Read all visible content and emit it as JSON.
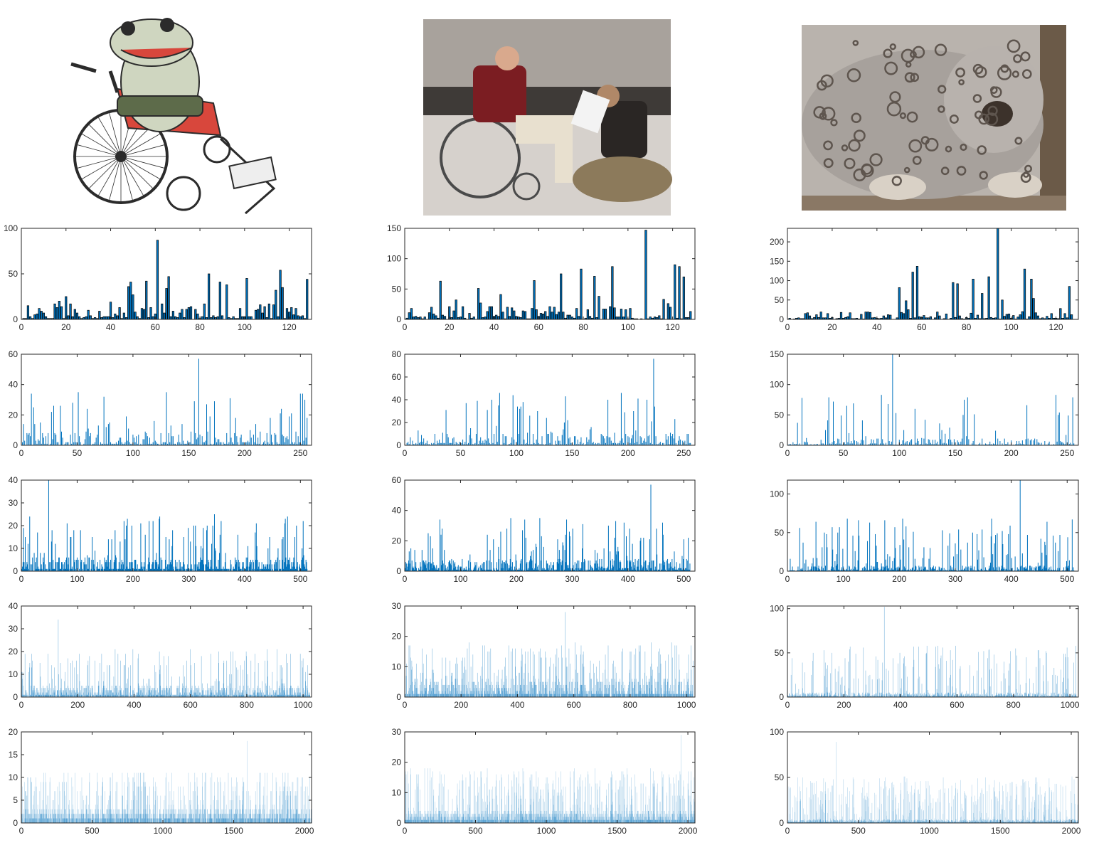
{
  "figure": {
    "images": [
      {
        "name": "frog-wheelchair-illustration",
        "palette": [
          "#cfd6c0",
          "#d8473c",
          "#2b2b2b"
        ]
      },
      {
        "name": "wheelchair-photo",
        "palette": [
          "#c9c0b6",
          "#7b1d22",
          "#2a2624"
        ]
      },
      {
        "name": "snow-leopard-photo",
        "palette": [
          "#b9b3ad",
          "#5e554e",
          "#3c322b"
        ]
      }
    ],
    "bar_color": "#0072BD"
  },
  "chart_data": [
    {
      "type": "bar",
      "row": 0,
      "col": 0,
      "bins": 128,
      "xlim": [
        0,
        130
      ],
      "ylim": [
        0,
        100
      ],
      "xticks": [
        0,
        20,
        40,
        60,
        80,
        100,
        120
      ],
      "yticks": [
        0,
        50,
        100
      ],
      "peak": 87,
      "peak_at": 60,
      "typical": 18,
      "seed": 11
    },
    {
      "type": "bar",
      "row": 0,
      "col": 1,
      "bins": 128,
      "xlim": [
        0,
        130
      ],
      "ylim": [
        0,
        150
      ],
      "xticks": [
        0,
        20,
        40,
        60,
        80,
        100,
        120
      ],
      "yticks": [
        0,
        50,
        100,
        150
      ],
      "peak": 147,
      "peak_at": 107,
      "typical": 22,
      "seed": 23
    },
    {
      "type": "bar",
      "row": 0,
      "col": 2,
      "bins": 128,
      "xlim": [
        0,
        130
      ],
      "ylim": [
        0,
        235
      ],
      "xticks": [
        0,
        20,
        40,
        60,
        80,
        100,
        120
      ],
      "yticks": [
        0,
        50,
        100,
        150,
        200
      ],
      "peak": 235,
      "peak_at": 93,
      "typical": 20,
      "seed": 37
    },
    {
      "type": "bar",
      "row": 1,
      "col": 0,
      "bins": 256,
      "xlim": [
        0,
        260
      ],
      "ylim": [
        0,
        60
      ],
      "xticks": [
        0,
        50,
        100,
        150,
        200,
        250
      ],
      "yticks": [
        0,
        20,
        40,
        60
      ],
      "peak": 57,
      "peak_at": 158,
      "typical": 9,
      "seed": 41
    },
    {
      "type": "bar",
      "row": 1,
      "col": 1,
      "bins": 256,
      "xlim": [
        0,
        260
      ],
      "ylim": [
        0,
        80
      ],
      "xticks": [
        0,
        50,
        100,
        150,
        200,
        250
      ],
      "yticks": [
        0,
        20,
        40,
        60,
        80
      ],
      "peak": 76,
      "peak_at": 222,
      "typical": 11,
      "seed": 53
    },
    {
      "type": "bar",
      "row": 1,
      "col": 2,
      "bins": 256,
      "xlim": [
        0,
        260
      ],
      "ylim": [
        0,
        150
      ],
      "xticks": [
        0,
        50,
        100,
        150,
        200,
        250
      ],
      "yticks": [
        0,
        50,
        100,
        150
      ],
      "peak": 150,
      "peak_at": 93,
      "typical": 12,
      "seed": 67
    },
    {
      "type": "bar",
      "row": 2,
      "col": 0,
      "bins": 512,
      "xlim": [
        0,
        520
      ],
      "ylim": [
        0,
        40
      ],
      "xticks": [
        0,
        100,
        200,
        300,
        400,
        500
      ],
      "yticks": [
        0,
        10,
        20,
        30,
        40
      ],
      "peak": 40,
      "peak_at": 48,
      "typical": 6,
      "seed": 71
    },
    {
      "type": "bar",
      "row": 2,
      "col": 1,
      "bins": 512,
      "xlim": [
        0,
        520
      ],
      "ylim": [
        0,
        60
      ],
      "xticks": [
        0,
        100,
        200,
        300,
        400,
        500
      ],
      "yticks": [
        0,
        20,
        40,
        60
      ],
      "peak": 57,
      "peak_at": 440,
      "typical": 8,
      "seed": 83
    },
    {
      "type": "bar",
      "row": 2,
      "col": 2,
      "bins": 512,
      "xlim": [
        0,
        520
      ],
      "ylim": [
        0,
        118
      ],
      "xticks": [
        0,
        100,
        200,
        300,
        400,
        500
      ],
      "yticks": [
        0,
        50,
        100
      ],
      "peak": 118,
      "peak_at": 415,
      "typical": 7,
      "seed": 97
    },
    {
      "type": "bar",
      "row": 3,
      "col": 0,
      "bins": 1024,
      "xlim": [
        0,
        1030
      ],
      "ylim": [
        0,
        40
      ],
      "xticks": [
        0,
        200,
        400,
        600,
        800,
        1000
      ],
      "yticks": [
        0,
        10,
        20,
        30,
        40
      ],
      "peak": 34,
      "peak_at": 130,
      "typical": 5,
      "seed": 101
    },
    {
      "type": "bar",
      "row": 3,
      "col": 1,
      "bins": 1024,
      "xlim": [
        0,
        1030
      ],
      "ylim": [
        0,
        30
      ],
      "xticks": [
        0,
        200,
        400,
        600,
        800,
        1000
      ],
      "yticks": [
        0,
        10,
        20,
        30
      ],
      "peak": 28,
      "peak_at": 568,
      "typical": 6,
      "seed": 113
    },
    {
      "type": "bar",
      "row": 3,
      "col": 2,
      "bins": 1024,
      "xlim": [
        0,
        1030
      ],
      "ylim": [
        0,
        103
      ],
      "xticks": [
        0,
        200,
        400,
        600,
        800,
        1000
      ],
      "yticks": [
        0,
        50,
        100
      ],
      "peak": 102,
      "peak_at": 342,
      "typical": 5,
      "seed": 127
    },
    {
      "type": "bar",
      "row": 4,
      "col": 0,
      "bins": 2048,
      "xlim": [
        0,
        2050
      ],
      "ylim": [
        0,
        20
      ],
      "xticks": [
        0,
        500,
        1000,
        1500,
        2000
      ],
      "yticks": [
        0,
        5,
        10,
        15,
        20
      ],
      "peak": 18,
      "peak_at": 1595,
      "typical": 3,
      "seed": 131
    },
    {
      "type": "bar",
      "row": 4,
      "col": 1,
      "bins": 2048,
      "xlim": [
        0,
        2050
      ],
      "ylim": [
        0,
        30
      ],
      "xticks": [
        0,
        500,
        1000,
        1500,
        2000
      ],
      "yticks": [
        0,
        10,
        20,
        30
      ],
      "peak": 29,
      "peak_at": 1950,
      "typical": 4,
      "seed": 139
    },
    {
      "type": "bar",
      "row": 4,
      "col": 2,
      "bins": 2048,
      "xlim": [
        0,
        2050
      ],
      "ylim": [
        0,
        100
      ],
      "xticks": [
        0,
        500,
        1000,
        1500,
        2000
      ],
      "yticks": [
        0,
        50,
        100
      ],
      "peak": 89,
      "peak_at": 342,
      "typical": 4,
      "seed": 149
    }
  ]
}
